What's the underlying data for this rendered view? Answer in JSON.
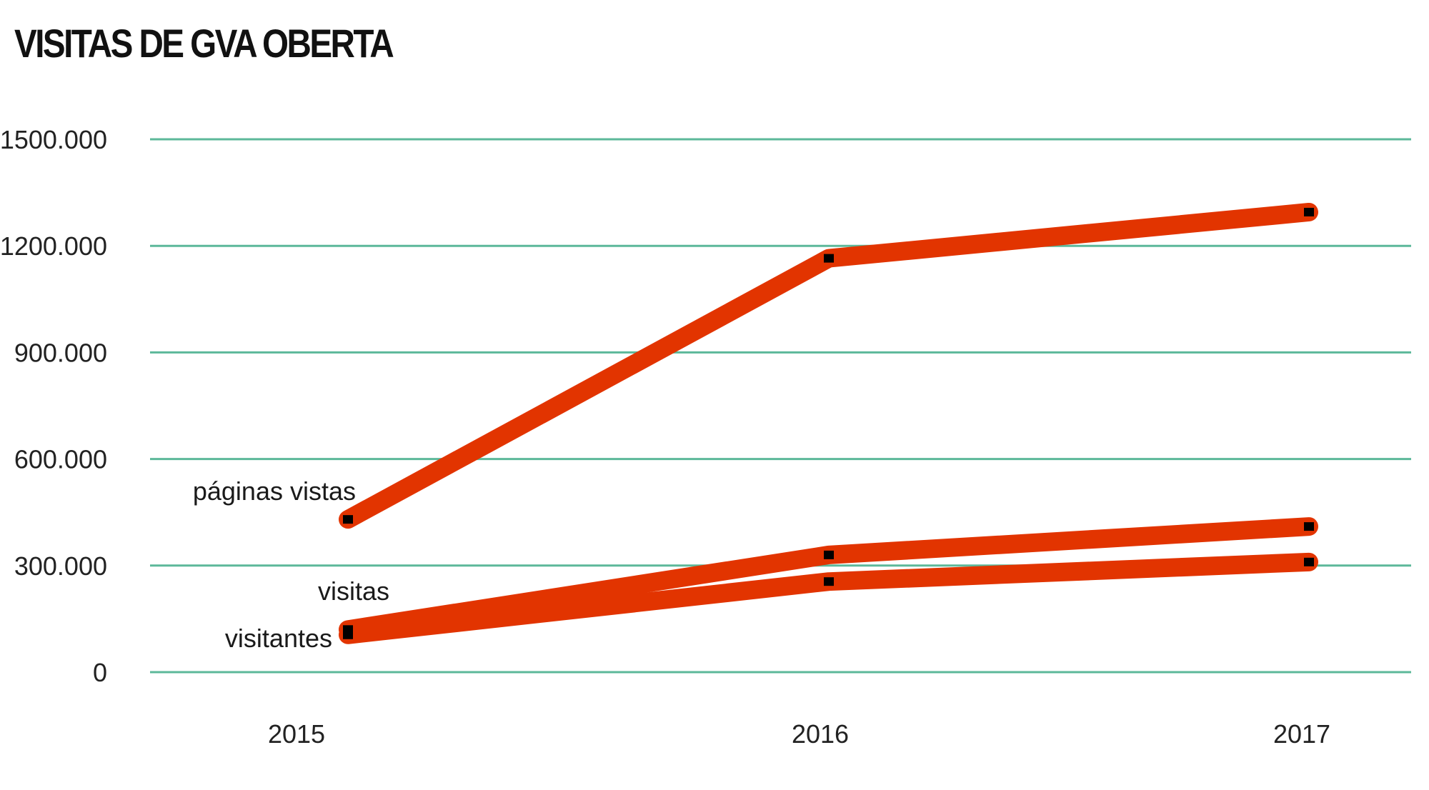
{
  "chart_data": {
    "type": "line",
    "title": "VISITAS DE GVA OBERTA",
    "xlabel": "",
    "ylabel": "",
    "categories": [
      "2015",
      "2016",
      "2017"
    ],
    "ylim": [
      0,
      1500000
    ],
    "yticks": [
      0,
      300000,
      600000,
      900000,
      1200000,
      1500000
    ],
    "ytick_labels": [
      "0",
      "300.000",
      "600.000",
      "900.000",
      "1200.000",
      "1500.000"
    ],
    "grid": true,
    "legend": "none",
    "colors": {
      "line": "#e23400",
      "marker": "#000000",
      "grid": "#5cb89a"
    },
    "series": [
      {
        "name": "páginas vistas",
        "values": [
          430000,
          1165000,
          1295000
        ]
      },
      {
        "name": "visitas",
        "values": [
          120000,
          330000,
          410000
        ]
      },
      {
        "name": "visitantes",
        "values": [
          105000,
          255000,
          310000
        ]
      }
    ]
  }
}
